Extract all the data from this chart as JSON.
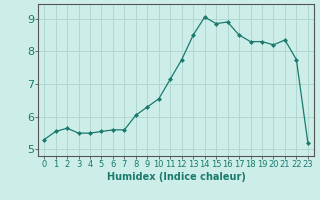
{
  "x": [
    0,
    1,
    2,
    3,
    4,
    5,
    6,
    7,
    8,
    9,
    10,
    11,
    12,
    13,
    14,
    15,
    16,
    17,
    18,
    19,
    20,
    21,
    22,
    23
  ],
  "y": [
    5.3,
    5.55,
    5.65,
    5.5,
    5.5,
    5.55,
    5.6,
    5.6,
    6.05,
    6.3,
    6.55,
    7.15,
    7.75,
    8.5,
    9.05,
    8.85,
    8.9,
    8.5,
    8.3,
    8.3,
    8.2,
    8.35,
    7.75,
    5.2
  ],
  "line_color": "#1a7a6e",
  "marker": "D",
  "marker_size": 2.0,
  "bg_color": "#cdeee8",
  "grid_color": "#b0d8d0",
  "xlabel": "Humidex (Indice chaleur)",
  "ylim": [
    4.8,
    9.45
  ],
  "xlim": [
    -0.5,
    23.5
  ],
  "yticks": [
    5,
    6,
    7,
    8,
    9
  ],
  "xticks": [
    0,
    1,
    2,
    3,
    4,
    5,
    6,
    7,
    8,
    9,
    10,
    11,
    12,
    13,
    14,
    15,
    16,
    17,
    18,
    19,
    20,
    21,
    22,
    23
  ],
  "tick_color": "#1a7a6e",
  "label_color": "#1a7a6e",
  "axis_color": "#555555",
  "font_size_label": 7,
  "font_size_tick_x": 6,
  "font_size_tick_y": 8
}
